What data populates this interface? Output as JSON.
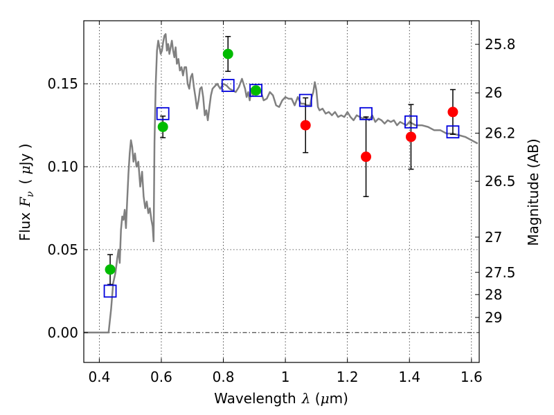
{
  "chart_data": {
    "type": "scatter",
    "title": "",
    "xlabel": {
      "prefix": "Wavelength",
      "symbol": "λ",
      "unit_open": " (",
      "unit_mu": "μ",
      "unit_rest": "m)"
    },
    "ylabel": {
      "prefix": "Flux",
      "symbol": "F",
      "subscript": "ν",
      "unit_open": "( ",
      "unit_mu": "μ",
      "unit_rest": "Jy )"
    },
    "y2label": "Magnitude (AB)",
    "xlim": [
      0.35,
      1.625
    ],
    "ylim": [
      -0.018,
      0.188
    ],
    "x_ticks": [
      {
        "value": 0.4,
        "label": "0.4"
      },
      {
        "value": 0.6,
        "label": "0.6"
      },
      {
        "value": 0.8,
        "label": "0.8"
      },
      {
        "value": 1.0,
        "label": "1"
      },
      {
        "value": 1.2,
        "label": "1.2"
      },
      {
        "value": 1.4,
        "label": "1.4"
      },
      {
        "value": 1.6,
        "label": "1.6"
      }
    ],
    "y_ticks": [
      {
        "value": 0.0,
        "label": "0.00"
      },
      {
        "value": 0.05,
        "label": "0.05"
      },
      {
        "value": 0.1,
        "label": "0.10"
      },
      {
        "value": 0.15,
        "label": "0.15"
      }
    ],
    "y2_ticks": [
      {
        "mag": 25.8,
        "label": "25.8"
      },
      {
        "mag": 26.0,
        "label": "26"
      },
      {
        "mag": 26.2,
        "label": "26.2"
      },
      {
        "mag": 26.5,
        "label": "26.5"
      },
      {
        "mag": 27.0,
        "label": "27"
      },
      {
        "mag": 27.5,
        "label": "27.5"
      },
      {
        "mag": 28.0,
        "label": "28"
      },
      {
        "mag": 29.0,
        "label": "29"
      }
    ],
    "grid": true,
    "zero_line": true,
    "model_spectrum": {
      "name": "model SED",
      "color": "#808080",
      "points": [
        [
          0.35,
          0.0
        ],
        [
          0.43,
          0.0
        ],
        [
          0.438,
          0.014
        ],
        [
          0.445,
          0.03
        ],
        [
          0.452,
          0.036
        ],
        [
          0.458,
          0.045
        ],
        [
          0.462,
          0.05
        ],
        [
          0.466,
          0.042
        ],
        [
          0.47,
          0.062
        ],
        [
          0.474,
          0.07
        ],
        [
          0.478,
          0.068
        ],
        [
          0.482,
          0.074
        ],
        [
          0.486,
          0.063
        ],
        [
          0.49,
          0.08
        ],
        [
          0.494,
          0.096
        ],
        [
          0.498,
          0.108
        ],
        [
          0.502,
          0.116
        ],
        [
          0.506,
          0.112
        ],
        [
          0.51,
          0.103
        ],
        [
          0.515,
          0.108
        ],
        [
          0.52,
          0.1
        ],
        [
          0.526,
          0.103
        ],
        [
          0.532,
          0.088
        ],
        [
          0.538,
          0.097
        ],
        [
          0.543,
          0.082
        ],
        [
          0.548,
          0.075
        ],
        [
          0.553,
          0.079
        ],
        [
          0.558,
          0.072
        ],
        [
          0.563,
          0.075
        ],
        [
          0.568,
          0.068
        ],
        [
          0.572,
          0.064
        ],
        [
          0.575,
          0.055
        ],
        [
          0.578,
          0.115
        ],
        [
          0.582,
          0.15
        ],
        [
          0.586,
          0.17
        ],
        [
          0.59,
          0.176
        ],
        [
          0.594,
          0.172
        ],
        [
          0.598,
          0.168
        ],
        [
          0.602,
          0.17
        ],
        [
          0.606,
          0.175
        ],
        [
          0.61,
          0.179
        ],
        [
          0.614,
          0.18
        ],
        [
          0.618,
          0.17
        ],
        [
          0.622,
          0.174
        ],
        [
          0.626,
          0.168
        ],
        [
          0.63,
          0.172
        ],
        [
          0.634,
          0.176
        ],
        [
          0.638,
          0.17
        ],
        [
          0.642,
          0.166
        ],
        [
          0.646,
          0.172
        ],
        [
          0.65,
          0.162
        ],
        [
          0.655,
          0.165
        ],
        [
          0.66,
          0.158
        ],
        [
          0.665,
          0.16
        ],
        [
          0.67,
          0.155
        ],
        [
          0.675,
          0.16
        ],
        [
          0.68,
          0.16
        ],
        [
          0.685,
          0.15
        ],
        [
          0.69,
          0.147
        ],
        [
          0.695,
          0.154
        ],
        [
          0.7,
          0.156
        ],
        [
          0.705,
          0.148
        ],
        [
          0.71,
          0.142
        ],
        [
          0.715,
          0.135
        ],
        [
          0.72,
          0.14
        ],
        [
          0.725,
          0.147
        ],
        [
          0.73,
          0.148
        ],
        [
          0.735,
          0.142
        ],
        [
          0.74,
          0.131
        ],
        [
          0.745,
          0.134
        ],
        [
          0.75,
          0.128
        ],
        [
          0.755,
          0.136
        ],
        [
          0.76,
          0.143
        ],
        [
          0.765,
          0.147
        ],
        [
          0.77,
          0.148
        ],
        [
          0.78,
          0.15
        ],
        [
          0.79,
          0.147
        ],
        [
          0.8,
          0.15
        ],
        [
          0.81,
          0.149
        ],
        [
          0.82,
          0.147
        ],
        [
          0.83,
          0.146
        ],
        [
          0.84,
          0.145
        ],
        [
          0.85,
          0.148
        ],
        [
          0.86,
          0.153
        ],
        [
          0.87,
          0.147
        ],
        [
          0.875,
          0.142
        ],
        [
          0.88,
          0.145
        ],
        [
          0.885,
          0.14
        ],
        [
          0.89,
          0.147
        ],
        [
          0.895,
          0.143
        ],
        [
          0.9,
          0.146
        ],
        [
          0.91,
          0.146
        ],
        [
          0.92,
          0.146
        ],
        [
          0.93,
          0.14
        ],
        [
          0.94,
          0.141
        ],
        [
          0.95,
          0.145
        ],
        [
          0.96,
          0.143
        ],
        [
          0.97,
          0.137
        ],
        [
          0.98,
          0.136
        ],
        [
          0.99,
          0.14
        ],
        [
          1.0,
          0.142
        ],
        [
          1.01,
          0.141
        ],
        [
          1.02,
          0.141
        ],
        [
          1.03,
          0.137
        ],
        [
          1.04,
          0.142
        ],
        [
          1.05,
          0.138
        ],
        [
          1.06,
          0.138
        ],
        [
          1.07,
          0.137
        ],
        [
          1.08,
          0.137
        ],
        [
          1.085,
          0.142
        ],
        [
          1.09,
          0.145
        ],
        [
          1.095,
          0.151
        ],
        [
          1.1,
          0.146
        ],
        [
          1.105,
          0.136
        ],
        [
          1.11,
          0.134
        ],
        [
          1.12,
          0.135
        ],
        [
          1.13,
          0.132
        ],
        [
          1.14,
          0.133
        ],
        [
          1.15,
          0.131
        ],
        [
          1.16,
          0.133
        ],
        [
          1.17,
          0.13
        ],
        [
          1.18,
          0.131
        ],
        [
          1.19,
          0.13
        ],
        [
          1.2,
          0.133
        ],
        [
          1.21,
          0.13
        ],
        [
          1.22,
          0.128
        ],
        [
          1.23,
          0.131
        ],
        [
          1.24,
          0.13
        ],
        [
          1.25,
          0.129
        ],
        [
          1.26,
          0.13
        ],
        [
          1.27,
          0.128
        ],
        [
          1.28,
          0.131
        ],
        [
          1.29,
          0.127
        ],
        [
          1.3,
          0.129
        ],
        [
          1.31,
          0.128
        ],
        [
          1.32,
          0.126
        ],
        [
          1.33,
          0.128
        ],
        [
          1.34,
          0.127
        ],
        [
          1.35,
          0.128
        ],
        [
          1.36,
          0.125
        ],
        [
          1.37,
          0.127
        ],
        [
          1.38,
          0.126
        ],
        [
          1.39,
          0.125
        ],
        [
          1.4,
          0.127
        ],
        [
          1.42,
          0.125
        ],
        [
          1.44,
          0.125
        ],
        [
          1.46,
          0.124
        ],
        [
          1.48,
          0.122
        ],
        [
          1.5,
          0.122
        ],
        [
          1.52,
          0.12
        ],
        [
          1.54,
          0.12
        ],
        [
          1.56,
          0.119
        ],
        [
          1.58,
          0.118
        ],
        [
          1.6,
          0.116
        ],
        [
          1.62,
          0.114
        ]
      ]
    },
    "series": [
      {
        "name": "green photometry",
        "marker": "circle",
        "color": "#00bb00",
        "points": [
          {
            "x": 0.435,
            "y": 0.038,
            "err": 0.009
          },
          {
            "x": 0.605,
            "y": 0.124,
            "err": 0.0065
          },
          {
            "x": 0.815,
            "y": 0.168,
            "err": 0.0105
          },
          {
            "x": 0.905,
            "y": 0.146,
            "err": null
          }
        ]
      },
      {
        "name": "red photometry",
        "marker": "circle",
        "color": "#ff0000",
        "points": [
          {
            "x": 1.065,
            "y": 0.125,
            "err": 0.0165
          },
          {
            "x": 1.26,
            "y": 0.106,
            "err": 0.024
          },
          {
            "x": 1.405,
            "y": 0.118,
            "err": 0.0195
          },
          {
            "x": 1.54,
            "y": 0.133,
            "err": 0.0135
          }
        ]
      },
      {
        "name": "model synthetic photometry",
        "marker": "square",
        "color": "#0000dd",
        "points": [
          {
            "x": 0.435,
            "y": 0.025
          },
          {
            "x": 0.605,
            "y": 0.132
          },
          {
            "x": 0.815,
            "y": 0.149
          },
          {
            "x": 0.905,
            "y": 0.146
          },
          {
            "x": 1.065,
            "y": 0.14
          },
          {
            "x": 1.26,
            "y": 0.132
          },
          {
            "x": 1.405,
            "y": 0.127
          },
          {
            "x": 1.54,
            "y": 0.121
          }
        ]
      }
    ]
  }
}
